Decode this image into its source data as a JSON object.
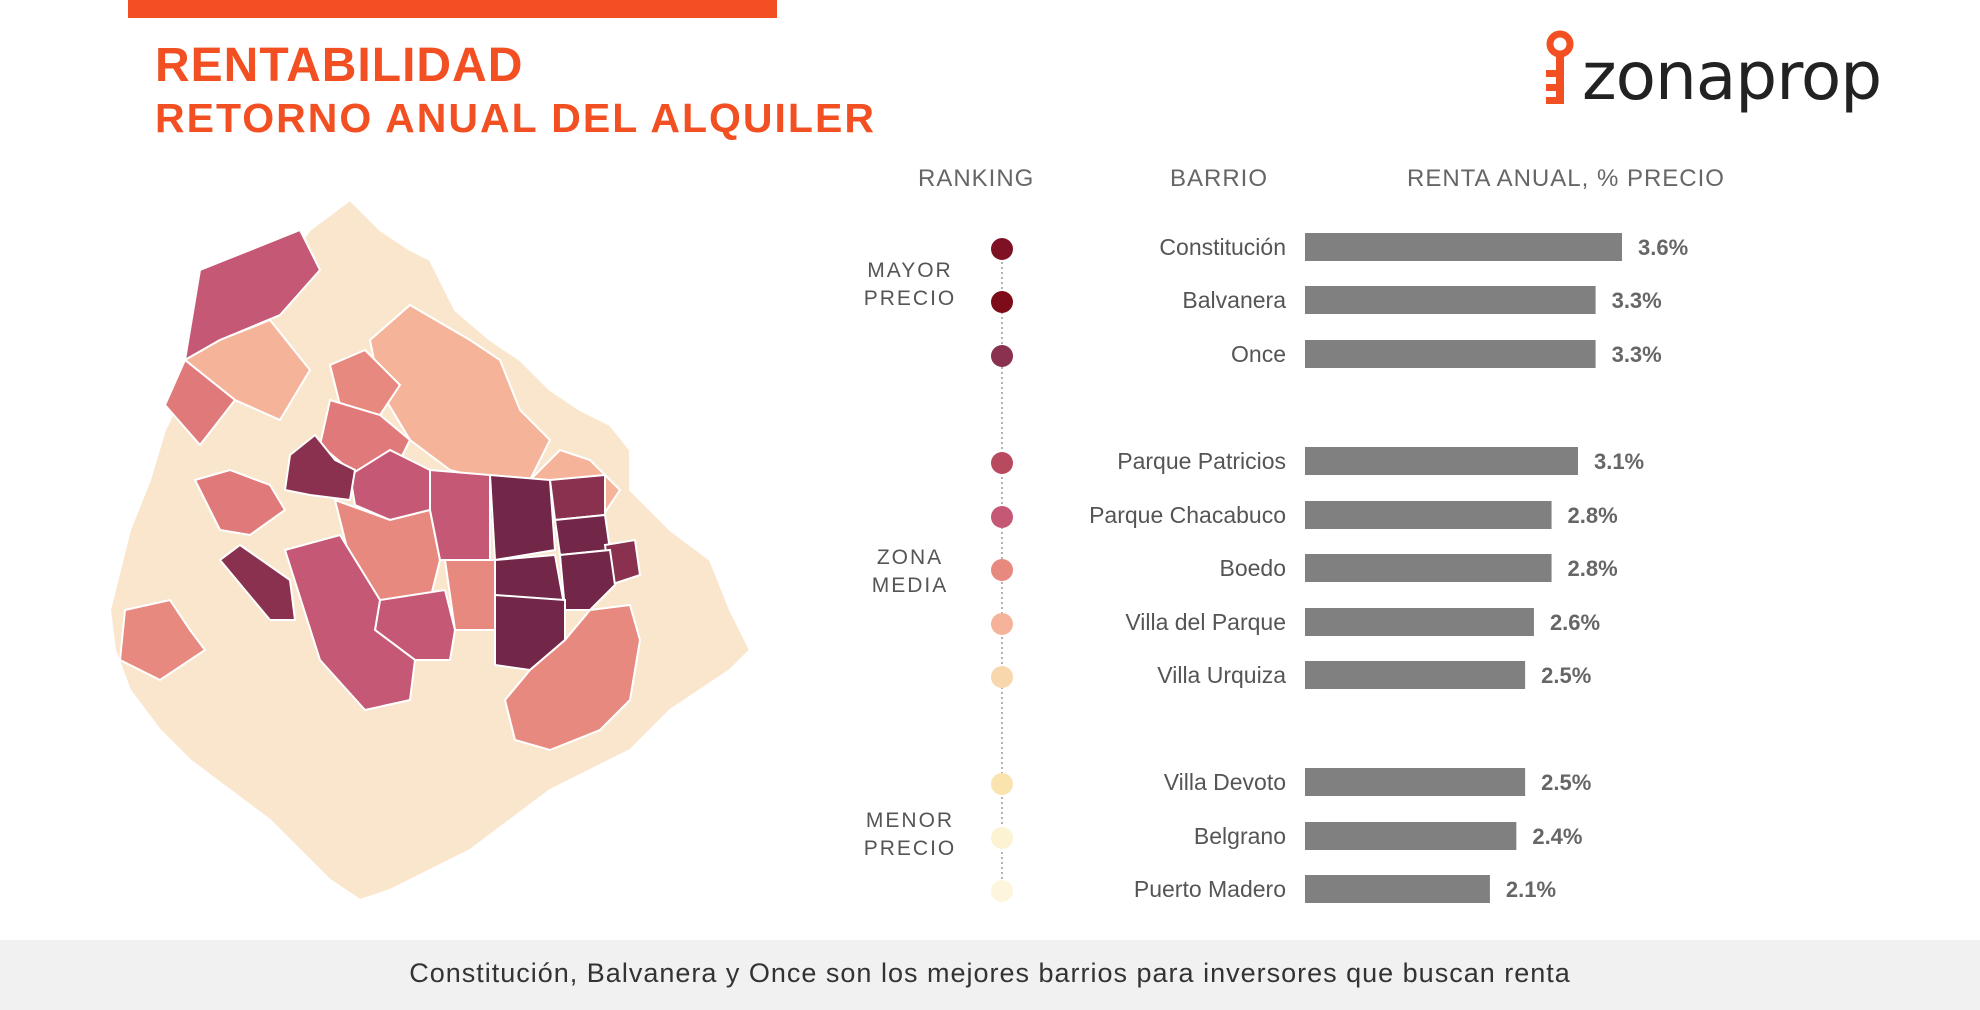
{
  "header": {
    "title": "RENTABILIDAD",
    "subtitle": "RETORNO ANUAL DEL ALQUILER"
  },
  "logo": {
    "text": "zonaprop",
    "icon": "key-icon",
    "brand_color": "#f25022"
  },
  "columns": {
    "ranking": "RANKING",
    "barrio": "BARRIO",
    "renta": "RENTA ANUAL, % PRECIO"
  },
  "groups": [
    {
      "label_lines": [
        "MAYOR",
        "PRECIO"
      ]
    },
    {
      "label_lines": [
        "ZONA",
        "MEDIA"
      ]
    },
    {
      "label_lines": [
        "MENOR",
        "PRECIO"
      ]
    }
  ],
  "chart_data": {
    "type": "bar",
    "orientation": "horizontal",
    "categories": [
      "Constitución",
      "Balvanera",
      "Once",
      "Parque Patricios",
      "Parque Chacabuco",
      "Boedo",
      "Villa del Parque",
      "Villa Urquiza",
      "Villa Devoto",
      "Belgrano",
      "Puerto Madero"
    ],
    "values": [
      3.6,
      3.3,
      3.3,
      3.1,
      2.8,
      2.8,
      2.6,
      2.5,
      2.5,
      2.4,
      2.1
    ],
    "value_labels": [
      "3.6%",
      "3.3%",
      "3.3%",
      "3.1%",
      "2.8%",
      "2.8%",
      "2.6%",
      "2.5%",
      "2.5%",
      "2.4%",
      "2.1%"
    ],
    "groups": [
      0,
      0,
      0,
      1,
      1,
      1,
      1,
      1,
      2,
      2,
      2
    ],
    "rank_colors": [
      "#7e1124",
      "#7d0b18",
      "#8a3150",
      "#b84a5f",
      "#c55875",
      "#e8897f",
      "#f5b49a",
      "#f8d7ad",
      "#f9e3ae",
      "#fcf3d3",
      "#fdf5dc"
    ],
    "bar_color": "#808080",
    "xlim": [
      0,
      4.0
    ],
    "grid": false,
    "legend": "none"
  },
  "footer": {
    "text": "Constitución, Balvanera y Once son los mejores barrios para inversores que buscan renta"
  }
}
